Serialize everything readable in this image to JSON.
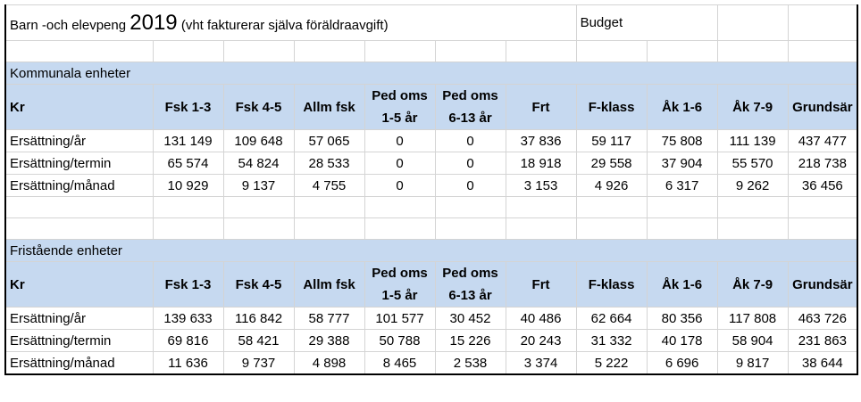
{
  "title": {
    "prefix": "Barn -och elevpeng",
    "year": "2019",
    "suffix": "(vht fakturerar själva föräldraavgift)",
    "budget_label": "Budget"
  },
  "columns": [
    "Kr",
    "Fsk 1-3",
    "Fsk 4-5",
    "Allm fsk",
    "Ped oms",
    "1-5 år",
    "Ped oms",
    "6-13 år",
    "Frt",
    "F-klass",
    "Åk 1-6",
    "Åk 7-9",
    "Grundsär"
  ],
  "sections": [
    {
      "title": "Kommunala enheter",
      "rows": [
        {
          "label": "Ersättning/år",
          "values": [
            "131 149",
            "109 648",
            "57 065",
            "0",
            "0",
            "37 836",
            "59 117",
            "75 808",
            "111 139",
            "437 477"
          ]
        },
        {
          "label": "Ersättning/termin",
          "values": [
            "65 574",
            "54 824",
            "28 533",
            "0",
            "0",
            "18 918",
            "29 558",
            "37 904",
            "55 570",
            "218 738"
          ]
        },
        {
          "label": "Ersättning/månad",
          "values": [
            "10 929",
            "9 137",
            "4 755",
            "0",
            "0",
            "3 153",
            "4 926",
            "6 317",
            "9 262",
            "36 456"
          ]
        }
      ]
    },
    {
      "title": "Fristående enheter",
      "rows": [
        {
          "label": "Ersättning/år",
          "values": [
            "139 633",
            "116 842",
            "58 777",
            "101 577",
            "30 452",
            "40 486",
            "62 664",
            "80 356",
            "117 808",
            "463 726"
          ]
        },
        {
          "label": "Ersättning/termin",
          "values": [
            "69 816",
            "58 421",
            "29 388",
            "50 788",
            "15 226",
            "20 243",
            "31 332",
            "40 178",
            "58 904",
            "231 863"
          ]
        },
        {
          "label": "Ersättning/månad",
          "values": [
            "11 636",
            "9 737",
            "4 898",
            "8 465",
            "2 538",
            "3 374",
            "5 222",
            "6 696",
            "9 817",
            "38 644"
          ]
        }
      ]
    }
  ],
  "colors": {
    "header_fill": "#c6d9f0",
    "border": "#000000"
  }
}
